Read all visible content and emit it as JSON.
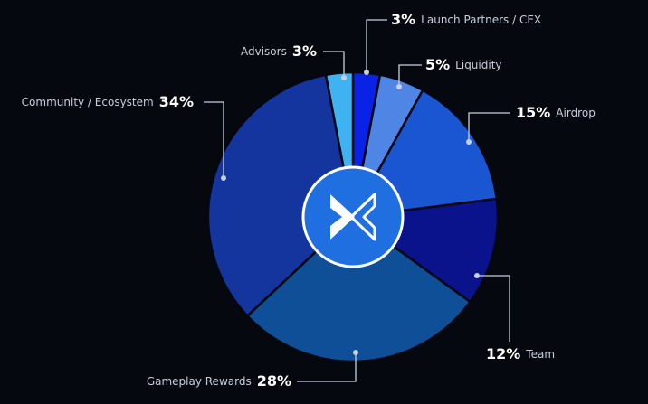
{
  "chart_data": {
    "type": "pie",
    "categories": [
      "Launch Partners / CEX",
      "Liquidity",
      "Airdrop",
      "Team",
      "Gameplay Rewards",
      "Community / Ecosystem",
      "Advisors"
    ],
    "values": [
      3,
      5,
      15,
      12,
      28,
      34,
      3
    ],
    "value_labels": [
      "3%",
      "5%",
      "15%",
      "12%",
      "28%",
      "34%",
      "3%"
    ],
    "colors": [
      "#0a22e6",
      "#4f86e6",
      "#1a55d2",
      "#0a128c",
      "#0f4f98",
      "#14349e",
      "#3fb2f2"
    ]
  }
}
